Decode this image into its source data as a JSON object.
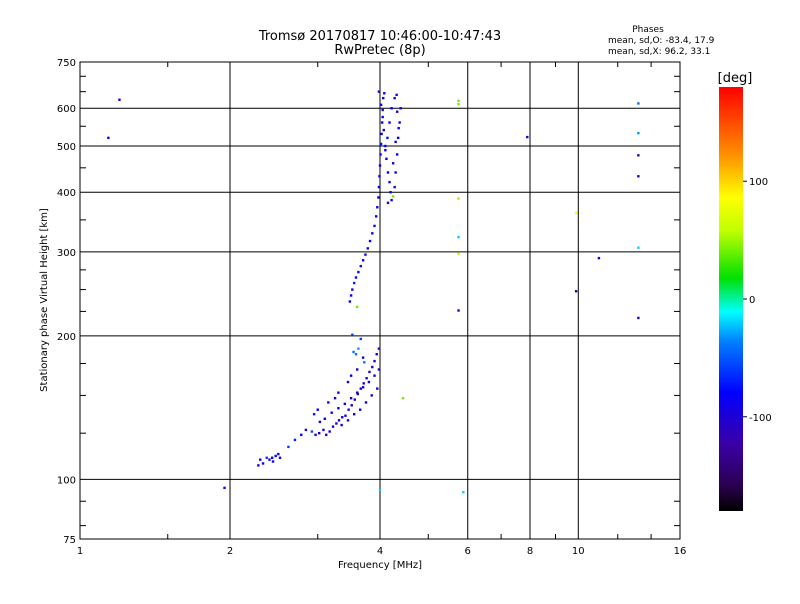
{
  "chart_data": {
    "type": "scatter",
    "title": "Tromsø 20170817 10:46:00-10:47:43",
    "subtitle": "RwPretec (8p)",
    "xlabel": "Frequency [MHz]",
    "ylabel": "Stationary phase Virtual Height [km]",
    "x_scale": "log",
    "y_scale": "log",
    "xlim": [
      1,
      16
    ],
    "ylim": [
      75,
      750
    ],
    "x_ticks": [
      1,
      2,
      4,
      6,
      8,
      10,
      16
    ],
    "x_tick_labels": [
      "1",
      "2",
      "4",
      "6",
      "8",
      "10",
      "16"
    ],
    "y_ticks": [
      75,
      100,
      200,
      300,
      400,
      500,
      600,
      750
    ],
    "y_tick_labels": [
      "75",
      "100",
      "200",
      "300",
      "400",
      "500",
      "600",
      "750"
    ],
    "grid": true,
    "stats": {
      "heading": "Phases",
      "line1": "mean, sd,O: -83.4, 17.9",
      "line2": "mean, sd,X:  96.2, 33.1"
    },
    "colorbar": {
      "label": "[deg]",
      "range": [
        -180,
        180
      ],
      "ticks": [
        100,
        0,
        -100
      ],
      "tick_labels": [
        "100",
        "0",
        "-100"
      ]
    },
    "colors": {
      "background": "#ffffff",
      "axes": "#000000",
      "grid": "#000000"
    },
    "series": [
      {
        "points": [
          [
            2.28,
            107,
            -95
          ],
          [
            2.3,
            110,
            -100
          ],
          [
            2.33,
            108,
            -90
          ],
          [
            2.37,
            111,
            -60
          ],
          [
            2.4,
            110,
            -95
          ],
          [
            2.43,
            111,
            -80
          ],
          [
            2.47,
            112,
            -90
          ],
          [
            2.5,
            113,
            -85
          ],
          [
            2.44,
            109,
            -100
          ],
          [
            2.52,
            111,
            -95
          ],
          [
            2.62,
            117,
            -60
          ],
          [
            2.7,
            121,
            -70
          ],
          [
            2.78,
            124,
            -80
          ],
          [
            2.84,
            127,
            -90
          ],
          [
            2.92,
            126,
            -55
          ],
          [
            2.97,
            124,
            -100
          ],
          [
            3.02,
            125,
            -95
          ],
          [
            3.08,
            127,
            -100
          ],
          [
            3.12,
            124,
            -95
          ],
          [
            3.17,
            126,
            -100
          ],
          [
            3.22,
            129,
            -95
          ],
          [
            3.27,
            131,
            -100
          ],
          [
            3.31,
            133,
            -90
          ],
          [
            3.36,
            135,
            -100
          ],
          [
            3.41,
            136,
            -95
          ],
          [
            3.46,
            140,
            -100
          ],
          [
            3.51,
            143,
            -95
          ],
          [
            3.56,
            147,
            -100
          ],
          [
            3.61,
            151,
            -100
          ],
          [
            3.66,
            155,
            -100
          ],
          [
            3.71,
            159,
            -100
          ],
          [
            3.76,
            163,
            -95
          ],
          [
            3.81,
            168,
            -100
          ],
          [
            3.86,
            172,
            -100
          ],
          [
            3.9,
            177,
            -100
          ],
          [
            3.94,
            183,
            -100
          ],
          [
            3.98,
            188,
            -100
          ],
          [
            3.03,
            132,
            -80
          ],
          [
            3.1,
            134,
            -90
          ],
          [
            3.2,
            138,
            -100
          ],
          [
            3.3,
            141,
            -100
          ],
          [
            3.4,
            144,
            -95
          ],
          [
            3.5,
            148,
            -100
          ],
          [
            3.6,
            152,
            -95
          ],
          [
            3.7,
            156,
            -100
          ],
          [
            3.8,
            160,
            -100
          ],
          [
            3.9,
            165,
            -95
          ],
          [
            3.35,
            130,
            -100
          ],
          [
            3.45,
            133,
            -100
          ],
          [
            3.55,
            137,
            -95
          ],
          [
            3.65,
            140,
            -100
          ],
          [
            3.75,
            145,
            -100
          ],
          [
            3.85,
            150,
            -100
          ],
          [
            3.95,
            155,
            -100
          ],
          [
            3.98,
            170,
            -100
          ],
          [
            3.7,
            180,
            -100
          ],
          [
            3.6,
            170,
            -100
          ],
          [
            3.5,
            165,
            -80
          ],
          [
            3.45,
            160,
            -100
          ],
          [
            3.3,
            152,
            -100
          ],
          [
            3.25,
            148,
            -100
          ],
          [
            3.15,
            145,
            -95
          ],
          [
            3.0,
            140,
            -80
          ],
          [
            2.95,
            137,
            -70
          ],
          [
            3.58,
            183,
            -40
          ],
          [
            3.72,
            176,
            -40
          ],
          [
            3.66,
            197,
            -60
          ],
          [
            3.52,
            201,
            -60
          ],
          [
            3.62,
            188,
            -30
          ],
          [
            3.54,
            185,
            -40
          ],
          [
            3.48,
            236,
            -90
          ],
          [
            3.5,
            243,
            -80
          ],
          [
            3.52,
            250,
            -90
          ],
          [
            3.55,
            258,
            -70
          ],
          [
            3.58,
            265,
            -80
          ],
          [
            3.62,
            272,
            -90
          ],
          [
            3.66,
            280,
            -75
          ],
          [
            3.7,
            288,
            -80
          ],
          [
            3.74,
            296,
            -85
          ],
          [
            3.78,
            305,
            -90
          ],
          [
            3.82,
            316,
            -80
          ],
          [
            3.86,
            328,
            -85
          ],
          [
            3.9,
            340,
            -75
          ],
          [
            3.93,
            356,
            -80
          ],
          [
            3.95,
            372,
            -90
          ],
          [
            3.97,
            390,
            -85
          ],
          [
            3.98,
            410,
            -90
          ],
          [
            3.99,
            432,
            -80
          ],
          [
            4.0,
            455,
            -85
          ],
          [
            4.01,
            480,
            -90
          ],
          [
            4.02,
            505,
            -75
          ],
          [
            4.03,
            530,
            -80
          ],
          [
            4.04,
            560,
            -85
          ],
          [
            4.05,
            595,
            -90
          ],
          [
            4.06,
            630,
            -100
          ],
          [
            4.08,
            645,
            -95
          ],
          [
            3.98,
            650,
            -100
          ],
          [
            4.02,
            610,
            -80
          ],
          [
            4.05,
            575,
            -85
          ],
          [
            4.07,
            540,
            -90
          ],
          [
            4.1,
            500,
            -85
          ],
          [
            4.12,
            470,
            -90
          ],
          [
            4.15,
            440,
            -80
          ],
          [
            4.18,
            420,
            -75
          ],
          [
            4.2,
            400,
            -85
          ],
          [
            4.22,
            385,
            -90
          ],
          [
            4.25,
            392,
            40
          ],
          [
            4.28,
            410,
            -95
          ],
          [
            4.3,
            440,
            -90
          ],
          [
            4.33,
            480,
            -85
          ],
          [
            4.35,
            520,
            -80
          ],
          [
            4.38,
            560,
            -85
          ],
          [
            4.4,
            600,
            -90
          ],
          [
            4.32,
            640,
            -100
          ],
          [
            4.28,
            630,
            -90
          ],
          [
            4.22,
            600,
            -85
          ],
          [
            4.18,
            560,
            -80
          ],
          [
            4.14,
            520,
            -75
          ],
          [
            4.1,
            490,
            -90
          ],
          [
            4.25,
            460,
            -85
          ],
          [
            4.3,
            510,
            -90
          ],
          [
            4.36,
            545,
            -80
          ],
          [
            4.33,
            590,
            -85
          ],
          [
            4.15,
            380,
            -100
          ],
          [
            3.6,
            230,
            40
          ],
          [
            4.45,
            148,
            40
          ],
          [
            4.0,
            95,
            -20
          ],
          [
            1.95,
            96,
            -100
          ],
          [
            1.2,
            625,
            -100
          ],
          [
            1.14,
            520,
            -80
          ],
          [
            5.75,
            622,
            40
          ],
          [
            5.75,
            612,
            40
          ],
          [
            5.75,
            388,
            50
          ],
          [
            5.75,
            322,
            -20
          ],
          [
            5.75,
            297,
            60
          ],
          [
            5.75,
            226,
            -100
          ],
          [
            5.88,
            94,
            -20
          ],
          [
            7.9,
            522,
            -90
          ],
          [
            9.9,
            362,
            80
          ],
          [
            9.9,
            248,
            -140
          ],
          [
            11.0,
            291,
            -90
          ],
          [
            13.2,
            614,
            -40
          ],
          [
            13.2,
            532,
            -30
          ],
          [
            13.2,
            478,
            -120
          ],
          [
            13.2,
            432,
            -100
          ],
          [
            13.2,
            306,
            -20
          ],
          [
            13.2,
            218,
            -110
          ]
        ]
      }
    ]
  }
}
